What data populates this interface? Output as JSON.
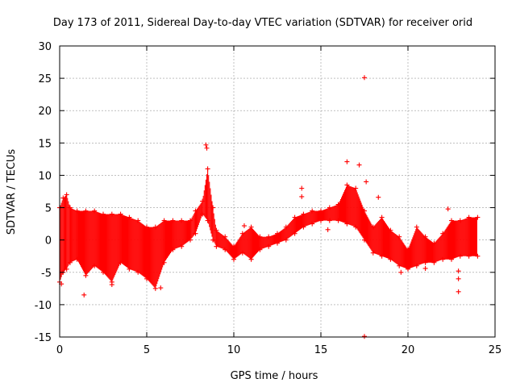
{
  "chart_data": {
    "type": "scatter",
    "title": "Day 173 of 2011, Sidereal Day-to-day VTEC variation (SDTVAR) for receiver orid",
    "xlabel": "GPS time / hours",
    "ylabel": "SDTVAR / TECUs",
    "xlim": [
      0,
      25
    ],
    "ylim": [
      -15,
      30
    ],
    "xticks": [
      0,
      5,
      10,
      15,
      20,
      25
    ],
    "yticks": [
      -15,
      -10,
      -5,
      0,
      5,
      10,
      15,
      20,
      25,
      30
    ],
    "xtick_labels": [
      "0",
      "5",
      "10",
      "15",
      "20",
      "25"
    ],
    "ytick_labels": [
      "-15",
      "-10",
      "-5",
      "0",
      "5",
      "10",
      "15",
      "20",
      "25",
      "30"
    ],
    "grid": true,
    "marker": "+",
    "color": "#ff0000",
    "series": [
      {
        "name": "SDTVAR",
        "band": [
          {
            "x": 0.0,
            "lo": -6.5,
            "hi": 5.0
          },
          {
            "x": 0.2,
            "lo": -5.0,
            "hi": 6.5
          },
          {
            "x": 0.4,
            "lo": -4.5,
            "hi": 7.0
          },
          {
            "x": 0.6,
            "lo": -3.5,
            "hi": 5.0
          },
          {
            "x": 1.0,
            "lo": -3.0,
            "hi": 4.5
          },
          {
            "x": 1.5,
            "lo": -5.5,
            "hi": 4.5
          },
          {
            "x": 2.0,
            "lo": -4.0,
            "hi": 4.5
          },
          {
            "x": 2.5,
            "lo": -5.0,
            "hi": 4.0
          },
          {
            "x": 3.0,
            "lo": -6.5,
            "hi": 4.0
          },
          {
            "x": 3.5,
            "lo": -3.5,
            "hi": 4.0
          },
          {
            "x": 4.0,
            "lo": -4.5,
            "hi": 3.5
          },
          {
            "x": 4.5,
            "lo": -5.0,
            "hi": 3.0
          },
          {
            "x": 5.0,
            "lo": -6.0,
            "hi": 2.0
          },
          {
            "x": 5.5,
            "lo": -7.5,
            "hi": 2.0
          },
          {
            "x": 6.0,
            "lo": -3.5,
            "hi": 3.0
          },
          {
            "x": 6.5,
            "lo": -1.5,
            "hi": 3.0
          },
          {
            "x": 7.0,
            "lo": -1.0,
            "hi": 3.0
          },
          {
            "x": 7.5,
            "lo": 0.0,
            "hi": 3.0
          },
          {
            "x": 7.8,
            "lo": 1.0,
            "hi": 4.5
          },
          {
            "x": 8.2,
            "lo": 4.0,
            "hi": 6.0
          },
          {
            "x": 8.5,
            "lo": 3.0,
            "hi": 11.0
          },
          {
            "x": 8.8,
            "lo": 0.0,
            "hi": 5.0
          },
          {
            "x": 9.0,
            "lo": -1.0,
            "hi": 1.5
          },
          {
            "x": 9.5,
            "lo": -1.5,
            "hi": 0.5
          },
          {
            "x": 10.0,
            "lo": -3.0,
            "hi": -1.0
          },
          {
            "x": 10.5,
            "lo": -2.0,
            "hi": 1.0
          },
          {
            "x": 11.0,
            "lo": -3.0,
            "hi": 2.0
          },
          {
            "x": 11.5,
            "lo": -1.5,
            "hi": 0.5
          },
          {
            "x": 12.0,
            "lo": -1.0,
            "hi": 0.5
          },
          {
            "x": 12.5,
            "lo": -0.5,
            "hi": 1.0
          },
          {
            "x": 13.0,
            "lo": 0.0,
            "hi": 2.0
          },
          {
            "x": 13.5,
            "lo": 1.0,
            "hi": 3.5
          },
          {
            "x": 14.0,
            "lo": 2.0,
            "hi": 4.0
          },
          {
            "x": 14.5,
            "lo": 2.5,
            "hi": 4.5
          },
          {
            "x": 15.0,
            "lo": 3.0,
            "hi": 4.5
          },
          {
            "x": 15.5,
            "lo": 3.0,
            "hi": 5.0
          },
          {
            "x": 16.0,
            "lo": 3.0,
            "hi": 5.5
          },
          {
            "x": 16.5,
            "lo": 2.5,
            "hi": 8.5
          },
          {
            "x": 17.0,
            "lo": 2.0,
            "hi": 8.0
          },
          {
            "x": 17.5,
            "lo": 0.0,
            "hi": 4.5
          },
          {
            "x": 18.0,
            "lo": -2.0,
            "hi": 2.0
          },
          {
            "x": 18.5,
            "lo": -2.5,
            "hi": 3.5
          },
          {
            "x": 19.0,
            "lo": -3.0,
            "hi": 1.5
          },
          {
            "x": 19.5,
            "lo": -4.0,
            "hi": 0.5
          },
          {
            "x": 20.0,
            "lo": -4.5,
            "hi": -1.5
          },
          {
            "x": 20.5,
            "lo": -4.0,
            "hi": 2.0
          },
          {
            "x": 21.0,
            "lo": -3.5,
            "hi": 0.5
          },
          {
            "x": 21.5,
            "lo": -3.5,
            "hi": -0.5
          },
          {
            "x": 22.0,
            "lo": -3.0,
            "hi": 1.0
          },
          {
            "x": 22.5,
            "lo": -3.0,
            "hi": 3.0
          },
          {
            "x": 23.0,
            "lo": -2.5,
            "hi": 3.0
          },
          {
            "x": 23.5,
            "lo": -2.5,
            "hi": 3.5
          },
          {
            "x": 24.0,
            "lo": -2.5,
            "hi": 3.5
          }
        ],
        "outliers": [
          {
            "x": 1.4,
            "y": -8.5
          },
          {
            "x": 8.4,
            "y": 14.7
          },
          {
            "x": 8.45,
            "y": 14.2
          },
          {
            "x": 10.6,
            "y": 2.2
          },
          {
            "x": 13.9,
            "y": 8.0
          },
          {
            "x": 13.9,
            "y": 6.7
          },
          {
            "x": 15.4,
            "y": 1.6
          },
          {
            "x": 16.5,
            "y": 12.1
          },
          {
            "x": 17.2,
            "y": 11.6
          },
          {
            "x": 17.5,
            "y": 25.1
          },
          {
            "x": 17.5,
            "y": -14.9
          },
          {
            "x": 17.6,
            "y": 9.0
          },
          {
            "x": 18.3,
            "y": 6.6
          },
          {
            "x": 19.6,
            "y": -5.0
          },
          {
            "x": 21.0,
            "y": -4.4
          },
          {
            "x": 22.3,
            "y": 4.8
          },
          {
            "x": 22.9,
            "y": -4.8
          },
          {
            "x": 22.9,
            "y": -6.0
          },
          {
            "x": 22.9,
            "y": -8.0
          },
          {
            "x": 0.1,
            "y": -6.8
          },
          {
            "x": 5.8,
            "y": -7.4
          },
          {
            "x": 3.0,
            "y": -6.9
          }
        ]
      }
    ]
  }
}
